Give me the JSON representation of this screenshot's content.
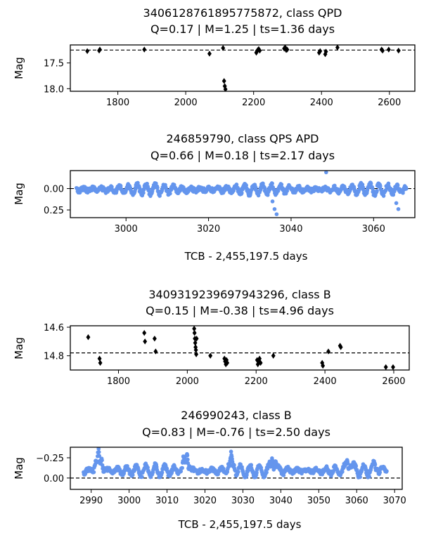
{
  "chart_data": [
    {
      "type": "scatter",
      "title": "3406128761895775872, class QPD",
      "subtitle": "Q=0.17 | M=1.25 | ts=1.36 days",
      "xlabel": "",
      "ylabel": "Mag",
      "xlim": [
        1660,
        2675
      ],
      "ylim": [
        18.05,
        17.15
      ],
      "y_inverted": true,
      "xticks": [
        1800,
        2000,
        2200,
        2400,
        2600
      ],
      "yticks": [
        17.5,
        18.0
      ],
      "ytick_labels": [
        "17.5",
        "18.0"
      ],
      "reference_line": 17.25,
      "color": "#000000",
      "marker": "diamond",
      "x": [
        1710,
        1745,
        1747,
        1878,
        2070,
        2110,
        2113,
        2115,
        2117,
        2208,
        2210,
        2212,
        2215,
        2218,
        2290,
        2293,
        2296,
        2299,
        2393,
        2396,
        2411,
        2413,
        2447,
        2577,
        2580,
        2598,
        2627
      ],
      "y": [
        17.27,
        17.26,
        17.24,
        17.24,
        17.32,
        17.21,
        17.85,
        17.95,
        18.01,
        17.3,
        17.27,
        17.25,
        17.23,
        17.26,
        17.22,
        17.2,
        17.25,
        17.24,
        17.3,
        17.27,
        17.33,
        17.28,
        17.2,
        17.24,
        17.26,
        17.24,
        17.26
      ]
    },
    {
      "type": "scatter",
      "title": "246859790, class QPS APD",
      "subtitle": "Q=0.66 | M=0.18 | ts=2.17 days",
      "xlabel": "TCB - 2,455,197.5 days",
      "ylabel": "Mag",
      "xlim": [
        2986.5,
        3070
      ],
      "ylim": [
        0.34,
        -0.21
      ],
      "y_inverted": true,
      "xticks": [
        3000,
        3020,
        3040,
        3060
      ],
      "yticks": [
        0.0,
        0.25
      ],
      "ytick_labels": [
        "0.00",
        "0.25"
      ],
      "reference_line": 0.0,
      "color": "#6495ed",
      "marker": "dense",
      "curve": {
        "x_start": 2988,
        "x_end": 3068,
        "period_days": 2.17,
        "amplitude": 0.06,
        "bias": 0.01
      },
      "outliers_x": [
        3035.5,
        3036.0,
        3036.5,
        3048.5,
        3065.5,
        3066.0
      ],
      "outliers_y": [
        0.15,
        0.24,
        0.3,
        -0.19,
        0.17,
        0.24
      ]
    },
    {
      "type": "scatter",
      "title": "3409319239697943296, class B",
      "subtitle": "Q=0.15 | M=-0.38 | ts=4.96 days",
      "xlabel": "",
      "ylabel": "Mag",
      "xlim": [
        1660,
        2645
      ],
      "ylim": [
        14.9,
        14.59
      ],
      "y_inverted": true,
      "xticks": [
        1800,
        2000,
        2200,
        2400,
        2600
      ],
      "yticks": [
        14.6,
        14.8
      ],
      "ytick_labels": [
        "14.6",
        "14.8"
      ],
      "reference_line": 14.78,
      "color": "#000000",
      "marker": "diamond",
      "x": [
        1712,
        1745,
        1747,
        1875,
        1877,
        1905,
        1908,
        2020,
        2021,
        2022,
        2023,
        2024,
        2025,
        2026,
        2027,
        2067,
        2108,
        2110,
        2112,
        2114,
        2116,
        2203,
        2205,
        2207,
        2210,
        2213,
        2250,
        2392,
        2394,
        2410,
        2444,
        2446,
        2577,
        2598
      ],
      "y": [
        14.67,
        14.82,
        14.85,
        14.64,
        14.7,
        14.68,
        14.77,
        14.61,
        14.64,
        14.68,
        14.71,
        14.74,
        14.76,
        14.79,
        14.68,
        14.8,
        14.82,
        14.84,
        14.86,
        14.83,
        14.85,
        14.83,
        14.86,
        14.84,
        14.82,
        14.85,
        14.8,
        14.85,
        14.87,
        14.77,
        14.73,
        14.74,
        14.88,
        14.88
      ]
    },
    {
      "type": "scatter",
      "title": "246990243, class B",
      "subtitle": "Q=0.83 | M=-0.76 | ts=2.50 days",
      "xlabel": "TCB - 2,455,197.5 days",
      "ylabel": "Mag",
      "xlim": [
        2984.5,
        3072
      ],
      "ylim": [
        0.14,
        -0.38
      ],
      "y_inverted": true,
      "xticks": [
        2990,
        3000,
        3010,
        3020,
        3030,
        3040,
        3050,
        3060,
        3070
      ],
      "yticks": [
        -0.25,
        0.0
      ],
      "ytick_labels": [
        "−0.25",
        "0.00"
      ],
      "reference_line": 0.0,
      "color": "#6495ed",
      "marker": "dense",
      "curve": {
        "x_start": 2988,
        "x_end": 3068,
        "period_days": 2.5,
        "amplitude": 0.07,
        "bias": -0.09
      },
      "bursts_x": [
        2992,
        3015,
        3027,
        3038,
        3058,
        3065
      ],
      "bursts_depth": [
        -0.36,
        -0.33,
        -0.26,
        -0.28,
        -0.24,
        -0.18
      ]
    }
  ]
}
